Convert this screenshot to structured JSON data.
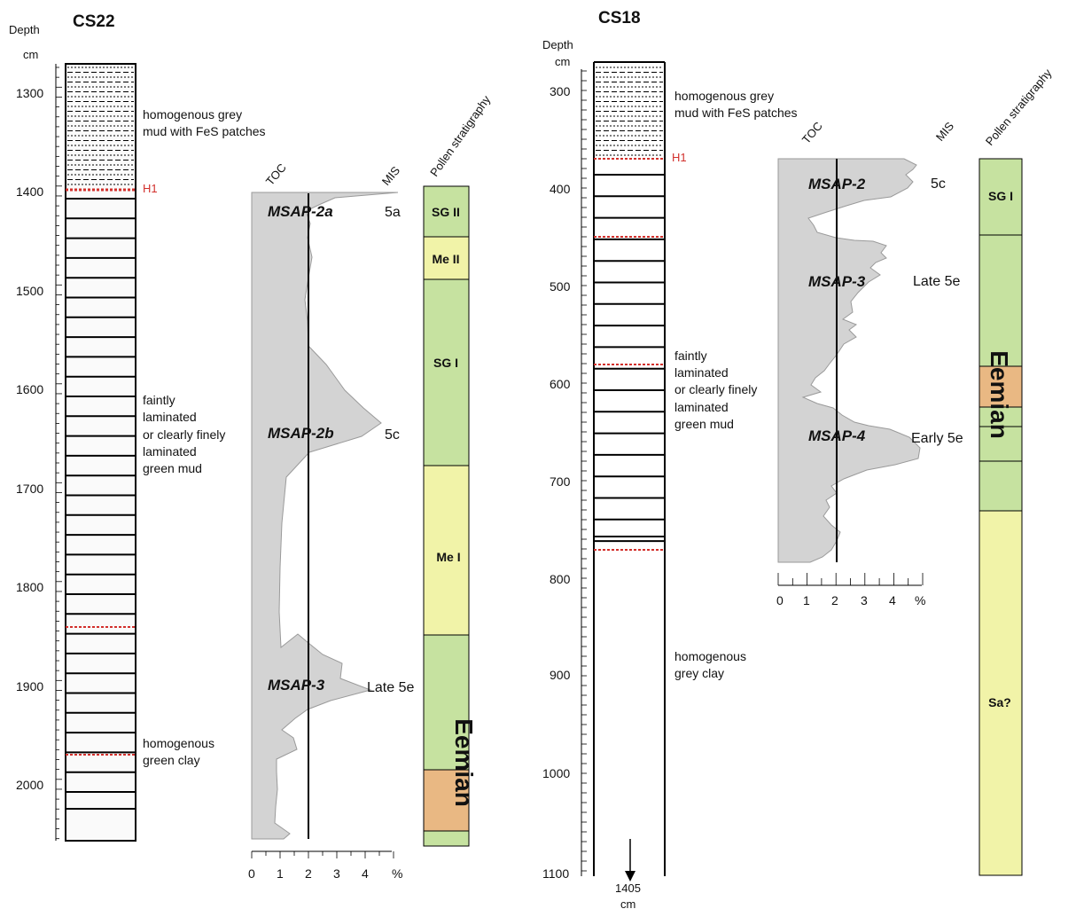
{
  "colors": {
    "toc_fill": "#d3d3d3",
    "toc_stroke": "#9a9a9a",
    "sg": "#c6e2a0",
    "me": "#f1f3a8",
    "sa": "#f1f3a8",
    "eemian_orange": "#e9b883",
    "event_red": "#d2302c"
  },
  "cs22": {
    "title": "CS22",
    "depth_label": "Depth",
    "depth_unit": "cm",
    "depth_ticks": [
      "1300",
      "1400",
      "1500",
      "1600",
      "1700",
      "1800",
      "1900",
      "2000"
    ],
    "h1_label": "H1",
    "descriptions": [
      [
        "homogenous grey",
        "mud with FeS patches"
      ],
      [
        "faintly",
        "laminated",
        "or clearly finely",
        "laminated",
        "green mud"
      ],
      [
        "homogenous",
        "green clay"
      ]
    ],
    "toc": {
      "header": "TOC",
      "mis_header": "MIS",
      "axis_ticks": [
        "0",
        "1",
        "2",
        "3",
        "4"
      ],
      "unit": "%",
      "msap": [
        "MSAP-2a",
        "MSAP-2b",
        "MSAP-3"
      ],
      "mis": [
        "5a",
        "5c",
        "Late 5e"
      ]
    },
    "pollen": {
      "header": "Pollen stratigraphy",
      "zones": [
        "SG II",
        "Me II",
        "SG I",
        "Me I"
      ],
      "eemian": "Eemian"
    }
  },
  "cs18": {
    "title": "CS18",
    "depth_label": "Depth",
    "depth_unit": "cm",
    "depth_ticks": [
      "300",
      "400",
      "500",
      "600",
      "700",
      "800",
      "900",
      "1000",
      "1100"
    ],
    "h1_label": "H1",
    "base_label": "1405",
    "base_unit": "cm",
    "descriptions": [
      [
        "homogenous grey",
        "mud with FeS patches"
      ],
      [
        "faintly",
        "laminated",
        "or clearly finely",
        "laminated",
        "green mud"
      ],
      [
        "homogenous",
        "grey clay"
      ]
    ],
    "toc": {
      "header": "TOC",
      "mis_header": "MIS",
      "axis_ticks": [
        "0",
        "1",
        "2",
        "3",
        "4"
      ],
      "unit": "%",
      "msap": [
        "MSAP-2",
        "MSAP-3",
        "MSAP-4"
      ],
      "mis": [
        "5c",
        "Late 5e",
        "Early 5e"
      ]
    },
    "pollen": {
      "header": "Pollen stratigraphy",
      "zones": [
        "SG I",
        "Sa?"
      ],
      "eemian": "Eemian"
    }
  }
}
